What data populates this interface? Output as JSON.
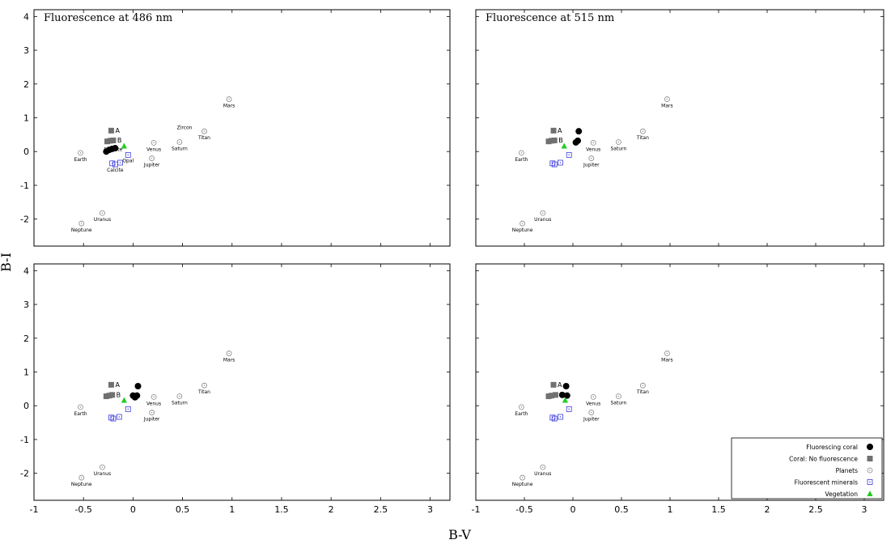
{
  "figure": {
    "xlabel": "B-V",
    "ylabel": "B-I",
    "xlim": [
      -1,
      3.2
    ],
    "ylim": [
      -2.8,
      4.2
    ],
    "xticks": [
      -1,
      -0.5,
      0,
      0.5,
      1,
      1.5,
      2,
      2.5,
      3
    ],
    "yticks": [
      -2,
      -1,
      0,
      1,
      2,
      3,
      4
    ],
    "legend": {
      "placement": "bottom-right of lower-right panel",
      "entries": [
        {
          "label": "Fluorescing coral",
          "marker": "filled-circle",
          "color": "#000000"
        },
        {
          "label": "Coral: No fluorescence",
          "marker": "filled-square",
          "color": "#707070"
        },
        {
          "label": "Planets",
          "marker": "dotted-circle",
          "color": "#888888"
        },
        {
          "label": "Fluorescent minerals",
          "marker": "dotted-square",
          "color": "#3a3adf"
        },
        {
          "label": "Vegetation",
          "marker": "filled-triangle",
          "color": "#22cc22"
        }
      ]
    }
  },
  "chart_data": [
    {
      "type": "scatter",
      "title": "Fluorescence at 486 nm",
      "series": [
        {
          "name": "Planets",
          "points": [
            {
              "x": -0.53,
              "y": -0.04,
              "label": "Earth"
            },
            {
              "x": -0.52,
              "y": -2.13,
              "label": "Neptune"
            },
            {
              "x": -0.31,
              "y": -1.82,
              "label": "Uranus"
            },
            {
              "x": 0.21,
              "y": 0.26,
              "label": "Venus"
            },
            {
              "x": 0.47,
              "y": 0.28,
              "label": "Saturn"
            },
            {
              "x": 0.19,
              "y": -0.2,
              "label": "Jupiter"
            },
            {
              "x": 0.72,
              "y": 0.6,
              "label": "Titan"
            },
            {
              "x": 0.97,
              "y": 1.55,
              "label": "Mars"
            }
          ]
        },
        {
          "name": "Coral: No fluorescence",
          "points": [
            {
              "x": -0.22,
              "y": 0.62,
              "label": "A"
            },
            {
              "x": -0.26,
              "y": 0.3,
              "label": ""
            },
            {
              "x": -0.23,
              "y": 0.32,
              "label": ""
            },
            {
              "x": -0.2,
              "y": 0.33,
              "label": "B"
            }
          ]
        },
        {
          "name": "Fluorescing coral",
          "points": [
            {
              "x": -0.27,
              "y": 0.0,
              "label": ""
            },
            {
              "x": -0.24,
              "y": 0.05,
              "label": ""
            },
            {
              "x": -0.21,
              "y": 0.08,
              "label": ""
            },
            {
              "x": -0.18,
              "y": 0.1,
              "label": ""
            }
          ]
        },
        {
          "name": "Fluorescent minerals",
          "points": [
            {
              "x": -0.21,
              "y": -0.35,
              "label": ""
            },
            {
              "x": -0.18,
              "y": -0.38,
              "label": "Calcite"
            },
            {
              "x": -0.13,
              "y": -0.33,
              "label": ""
            },
            {
              "x": -0.05,
              "y": -0.1,
              "label": "Opal"
            }
          ]
        },
        {
          "name": "Vegetation",
          "points": [
            {
              "x": -0.09,
              "y": 0.16,
              "label": ""
            }
          ]
        }
      ],
      "annotations": [
        {
          "text": "Zircon",
          "x": 0.52,
          "y": 0.67
        },
        {
          "text": "Fluorite",
          "x": -0.2,
          "y": 0.02
        }
      ]
    },
    {
      "type": "scatter",
      "title": "Fluorescence at 515 nm",
      "series": [
        {
          "name": "Planets",
          "points": [
            {
              "x": -0.53,
              "y": -0.04,
              "label": "Earth"
            },
            {
              "x": -0.52,
              "y": -2.13,
              "label": "Neptune"
            },
            {
              "x": -0.31,
              "y": -1.82,
              "label": "Uranus"
            },
            {
              "x": 0.21,
              "y": 0.26,
              "label": "Venus"
            },
            {
              "x": 0.47,
              "y": 0.28,
              "label": "Saturn"
            },
            {
              "x": 0.19,
              "y": -0.2,
              "label": "Jupiter"
            },
            {
              "x": 0.72,
              "y": 0.6,
              "label": "Titan"
            },
            {
              "x": 0.97,
              "y": 1.55,
              "label": "Mars"
            }
          ]
        },
        {
          "name": "Coral: No fluorescence",
          "points": [
            {
              "x": -0.2,
              "y": 0.62,
              "label": "A"
            },
            {
              "x": -0.25,
              "y": 0.3,
              "label": ""
            },
            {
              "x": -0.22,
              "y": 0.32,
              "label": ""
            },
            {
              "x": -0.19,
              "y": 0.33,
              "label": "B"
            }
          ]
        },
        {
          "name": "Fluorescing coral",
          "points": [
            {
              "x": 0.06,
              "y": 0.6,
              "label": ""
            },
            {
              "x": 0.03,
              "y": 0.27,
              "label": ""
            },
            {
              "x": 0.05,
              "y": 0.32,
              "label": ""
            }
          ]
        },
        {
          "name": "Fluorescent minerals",
          "points": [
            {
              "x": -0.21,
              "y": -0.35,
              "label": ""
            },
            {
              "x": -0.19,
              "y": -0.38,
              "label": ""
            },
            {
              "x": -0.13,
              "y": -0.33,
              "label": ""
            },
            {
              "x": -0.04,
              "y": -0.1,
              "label": ""
            }
          ]
        },
        {
          "name": "Vegetation",
          "points": [
            {
              "x": -0.09,
              "y": 0.16,
              "label": ""
            }
          ]
        }
      ]
    },
    {
      "type": "scatter",
      "title": "",
      "series": [
        {
          "name": "Planets",
          "points": [
            {
              "x": -0.53,
              "y": -0.04,
              "label": "Earth"
            },
            {
              "x": -0.52,
              "y": -2.13,
              "label": "Neptune"
            },
            {
              "x": -0.31,
              "y": -1.82,
              "label": "Uranus"
            },
            {
              "x": 0.21,
              "y": 0.26,
              "label": "Venus"
            },
            {
              "x": 0.47,
              "y": 0.28,
              "label": "Saturn"
            },
            {
              "x": 0.19,
              "y": -0.2,
              "label": "Jupiter"
            },
            {
              "x": 0.72,
              "y": 0.6,
              "label": "Titan"
            },
            {
              "x": 0.97,
              "y": 1.55,
              "label": "Mars"
            }
          ]
        },
        {
          "name": "Coral: No fluorescence",
          "points": [
            {
              "x": -0.22,
              "y": 0.62,
              "label": "A"
            },
            {
              "x": -0.27,
              "y": 0.28,
              "label": ""
            },
            {
              "x": -0.24,
              "y": 0.3,
              "label": ""
            },
            {
              "x": -0.21,
              "y": 0.32,
              "label": "B"
            }
          ]
        },
        {
          "name": "Fluorescing coral",
          "points": [
            {
              "x": 0.05,
              "y": 0.58,
              "label": ""
            },
            {
              "x": 0.0,
              "y": 0.3,
              "label": ""
            },
            {
              "x": 0.02,
              "y": 0.25,
              "label": ""
            },
            {
              "x": 0.04,
              "y": 0.3,
              "label": ""
            }
          ]
        },
        {
          "name": "Fluorescent minerals",
          "points": [
            {
              "x": -0.22,
              "y": -0.35,
              "label": ""
            },
            {
              "x": -0.2,
              "y": -0.38,
              "label": ""
            },
            {
              "x": -0.14,
              "y": -0.33,
              "label": ""
            },
            {
              "x": -0.05,
              "y": -0.1,
              "label": ""
            }
          ]
        },
        {
          "name": "Vegetation",
          "points": [
            {
              "x": -0.09,
              "y": 0.16,
              "label": ""
            }
          ]
        }
      ]
    },
    {
      "type": "scatter",
      "title": "",
      "series": [
        {
          "name": "Planets",
          "points": [
            {
              "x": -0.53,
              "y": -0.04,
              "label": "Earth"
            },
            {
              "x": -0.52,
              "y": -2.13,
              "label": "Neptune"
            },
            {
              "x": -0.31,
              "y": -1.82,
              "label": "Uranus"
            },
            {
              "x": 0.21,
              "y": 0.26,
              "label": "Venus"
            },
            {
              "x": 0.47,
              "y": 0.28,
              "label": "Saturn"
            },
            {
              "x": 0.19,
              "y": -0.2,
              "label": "Jupiter"
            },
            {
              "x": 0.72,
              "y": 0.6,
              "label": "Titan"
            },
            {
              "x": 0.97,
              "y": 1.55,
              "label": "Mars"
            }
          ]
        },
        {
          "name": "Coral: No fluorescence",
          "points": [
            {
              "x": -0.2,
              "y": 0.62,
              "label": "A"
            },
            {
              "x": -0.25,
              "y": 0.28,
              "label": ""
            },
            {
              "x": -0.22,
              "y": 0.3,
              "label": ""
            },
            {
              "x": -0.18,
              "y": 0.32,
              "label": "B"
            }
          ]
        },
        {
          "name": "Fluorescing coral",
          "points": [
            {
              "x": -0.07,
              "y": 0.58,
              "label": ""
            },
            {
              "x": -0.11,
              "y": 0.32,
              "label": ""
            },
            {
              "x": -0.06,
              "y": 0.3,
              "label": ""
            }
          ]
        },
        {
          "name": "Fluorescent minerals",
          "points": [
            {
              "x": -0.21,
              "y": -0.35,
              "label": ""
            },
            {
              "x": -0.19,
              "y": -0.38,
              "label": ""
            },
            {
              "x": -0.13,
              "y": -0.33,
              "label": ""
            },
            {
              "x": -0.04,
              "y": -0.1,
              "label": ""
            }
          ]
        },
        {
          "name": "Vegetation",
          "points": [
            {
              "x": -0.08,
              "y": 0.16,
              "label": ""
            }
          ]
        }
      ]
    }
  ]
}
